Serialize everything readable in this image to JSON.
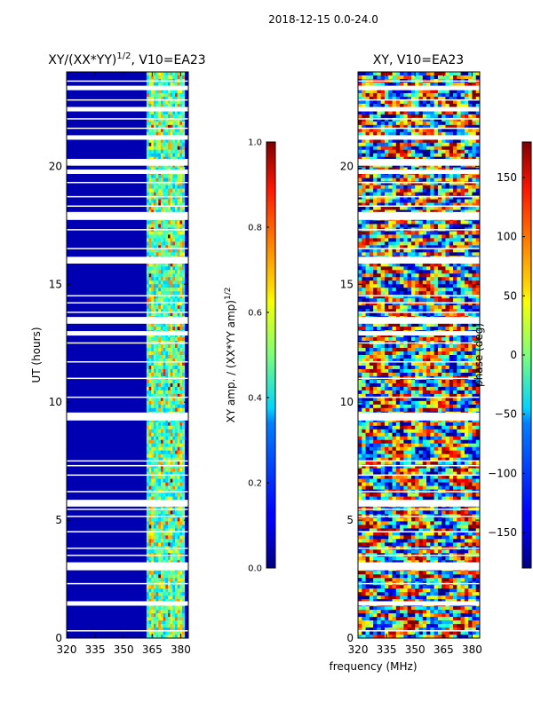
{
  "figure": {
    "suptitle": "2018-12-15 0.0-24.0",
    "shared_xlabel": "frequency (MHz)"
  },
  "chart_data": [
    {
      "type": "heatmap",
      "title": "XY/(XX*YY)^1/2, V10=EA23",
      "title_main": "XY/(XX*YY)",
      "title_exp": "1/2",
      "title_tail": ", V10=EA23",
      "xlabel": "frequency (MHz)",
      "ylabel": "UT (hours)",
      "xlim": [
        320,
        384
      ],
      "ylim": [
        0,
        24
      ],
      "xticks": [
        320,
        335,
        350,
        365,
        380
      ],
      "yticks": [
        0,
        5,
        10,
        15,
        20
      ],
      "colormap": "jet",
      "colorbar": {
        "label": "XY amp. / (XX*YY amp)^1/2",
        "label_main": "XY amp. / (XX*YY amp)",
        "label_exp": "1/2",
        "range": [
          0.0,
          1.0
        ],
        "ticks": [
          "0.0",
          "0.2",
          "0.4",
          "0.6",
          "0.8",
          "1.0"
        ]
      },
      "description_values": {
        "background_level": 0.05,
        "active_band_MHz": [
          362,
          382
        ],
        "active_band_levels": [
          0.3,
          0.75
        ]
      }
    },
    {
      "type": "heatmap",
      "title": "XY, V10=EA23",
      "xlabel": "frequency (MHz)",
      "ylabel": "",
      "xlim": [
        320,
        384
      ],
      "ylim": [
        0,
        24
      ],
      "xticks": [
        320,
        335,
        350,
        365,
        380
      ],
      "yticks": [
        0,
        5,
        10,
        15,
        20
      ],
      "colormap": "jet",
      "colorbar": {
        "label": "phase (deg)",
        "range": [
          -180,
          180
        ],
        "ticks": [
          "−150",
          "−100",
          "−50",
          "0",
          "50",
          "100",
          "150"
        ]
      }
    }
  ],
  "gaps_hours": [
    1.45,
    2.95,
    3.1,
    5.65,
    5.75,
    9.3,
    9.45,
    12.9,
    13.4,
    13.5,
    15.95,
    16.05,
    17.8,
    17.95,
    19.75,
    20.1,
    20.2,
    21.2,
    22.4,
    23.3
  ],
  "thin_gaps_hours": [
    0.3,
    2.3,
    3.5,
    3.8,
    4.5,
    5.15,
    5.45,
    6.2,
    6.9,
    7.3,
    7.5,
    10.2,
    11.0,
    11.7,
    12.5,
    13.8,
    14.2,
    14.5,
    16.5,
    17.3,
    18.3,
    18.7,
    19.3,
    21.6,
    22.0,
    22.8,
    23.6
  ]
}
